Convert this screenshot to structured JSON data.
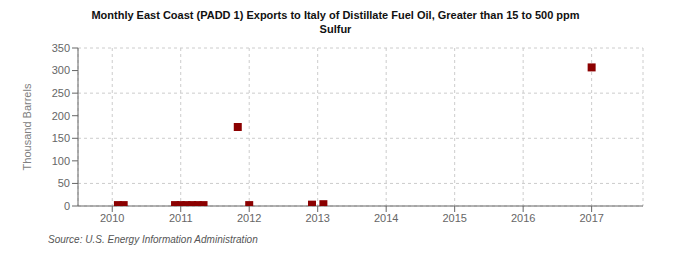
{
  "chart_data": {
    "type": "scatter",
    "title": "Monthly East Coast (PADD 1) Exports to Italy of Distillate Fuel Oil, Greater than 15 to 500 ppm\nSulfur",
    "ylabel": "Thousand Barrels",
    "annotations": [
      "Source: U.S. Energy Information Administration"
    ],
    "x": [
      2010.083,
      2010.167,
      2010.917,
      2011.0,
      2011.083,
      2011.167,
      2011.25,
      2011.333,
      2011.833,
      2012.0,
      2012.917,
      2013.083,
      2017.0
    ],
    "values": [
      2,
      2,
      2,
      2,
      2,
      2,
      2,
      2,
      175,
      2,
      3,
      4,
      307
    ],
    "color": "#8b0000",
    "marker": "square",
    "xlim": [
      2009.5,
      2017.75
    ],
    "ylim": [
      0,
      350
    ],
    "xticks": [
      2010,
      2011,
      2012,
      2013,
      2014,
      2015,
      2016,
      2017
    ],
    "yticks": [
      0,
      50,
      100,
      150,
      200,
      250,
      300,
      350
    ],
    "grid": true
  }
}
